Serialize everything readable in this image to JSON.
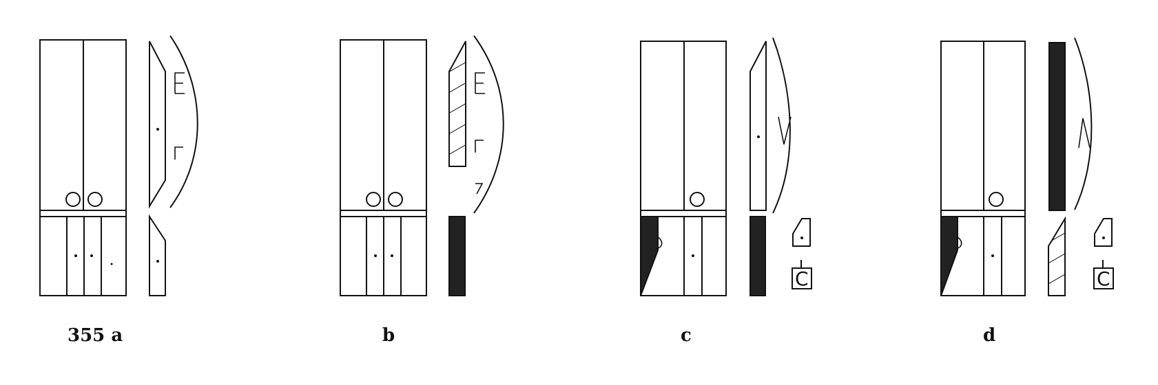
{
  "figure": {
    "panels": [
      {
        "id": "a",
        "label": "355 a"
      },
      {
        "id": "b",
        "label": "b"
      },
      {
        "id": "c",
        "label": "c"
      },
      {
        "id": "d",
        "label": "d"
      }
    ],
    "symbol_letter": "C"
  }
}
